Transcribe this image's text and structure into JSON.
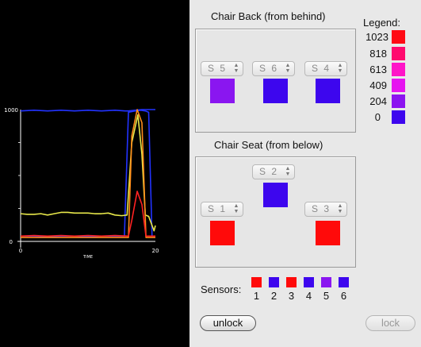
{
  "plot": {
    "chart_data": {
      "type": "line",
      "xlabel": "TIME",
      "x_ticks": [
        "0",
        "20"
      ],
      "y_ticks": [
        "1000",
        "0"
      ],
      "xlim": [
        0,
        20
      ],
      "ylim": [
        0,
        1000
      ],
      "series": [
        {
          "color": "#2233ff",
          "x": [
            0,
            2,
            4,
            6,
            8,
            10,
            12,
            14,
            15.5,
            16,
            17,
            18,
            19,
            20
          ],
          "values": [
            990,
            995,
            990,
            995,
            990,
            995,
            990,
            995,
            990,
            990,
            995,
            1000,
            1000,
            1000
          ]
        },
        {
          "color": "#2233ff",
          "x": [
            0,
            2,
            4,
            6,
            8,
            10,
            12,
            14,
            15.4,
            16,
            17,
            17.8,
            18.5,
            19,
            19.5,
            20
          ],
          "values": [
            40,
            40,
            35,
            40,
            40,
            35,
            40,
            40,
            40,
            980,
            990,
            995,
            990,
            980,
            40,
            40
          ]
        },
        {
          "color": "#e8e84a",
          "x": [
            0,
            1,
            2,
            3,
            4,
            5,
            6,
            7,
            8,
            9,
            10,
            11,
            12,
            13,
            14,
            15,
            15.8,
            16.5,
            17.4,
            18,
            18.5,
            19,
            19.8,
            20
          ],
          "values": [
            210,
            205,
            205,
            210,
            200,
            210,
            220,
            220,
            215,
            215,
            215,
            210,
            210,
            215,
            200,
            195,
            200,
            750,
            960,
            660,
            200,
            190,
            80,
            120
          ]
        },
        {
          "color": "#ff8c1a",
          "x": [
            0,
            4,
            8,
            12,
            16,
            16.5,
            17.3,
            18,
            18.6,
            19,
            20
          ],
          "values": [
            30,
            30,
            30,
            30,
            30,
            800,
            1000,
            900,
            30,
            30,
            30
          ]
        },
        {
          "color": "#ff2222",
          "x": [
            0,
            2,
            4,
            6,
            8,
            10,
            12,
            14,
            16,
            16.5,
            17.3,
            18,
            18.6,
            19,
            20
          ],
          "values": [
            40,
            45,
            40,
            45,
            40,
            45,
            40,
            45,
            40,
            160,
            380,
            280,
            40,
            40,
            40
          ]
        }
      ]
    }
  },
  "back": {
    "title": "Chair Back (from behind)",
    "sensors": [
      {
        "label": "S 5",
        "color": "#8a16f0"
      },
      {
        "label": "S 6",
        "color": "#3d06ee"
      },
      {
        "label": "S 4",
        "color": "#3d06ee"
      }
    ]
  },
  "seat": {
    "title": "Chair Seat (from below)",
    "sensors": [
      {
        "label": "S 2",
        "color": "#3d06ee"
      },
      {
        "label": "S 1",
        "color": "#ff0a0a"
      },
      {
        "label": "S 3",
        "color": "#ff0a0a"
      }
    ]
  },
  "legend": {
    "title": "Legend:",
    "entries": [
      {
        "value": "1023",
        "color": "#ff0a14"
      },
      {
        "value": "818",
        "color": "#ff0a6e"
      },
      {
        "value": "613",
        "color": "#ff14c8"
      },
      {
        "value": "409",
        "color": "#e614f0"
      },
      {
        "value": "204",
        "color": "#8c14f0"
      },
      {
        "value": "0",
        "color": "#3d06ee"
      }
    ]
  },
  "sensors_row": {
    "label": "Sensors:",
    "items": [
      {
        "num": "1",
        "color": "#ff0a0a"
      },
      {
        "num": "2",
        "color": "#3d06ee"
      },
      {
        "num": "3",
        "color": "#ff0a0a"
      },
      {
        "num": "4",
        "color": "#3d06ee"
      },
      {
        "num": "5",
        "color": "#8a16f0"
      },
      {
        "num": "6",
        "color": "#3d06ee"
      }
    ]
  },
  "buttons": {
    "unlock": "unlock",
    "lock": "lock"
  }
}
